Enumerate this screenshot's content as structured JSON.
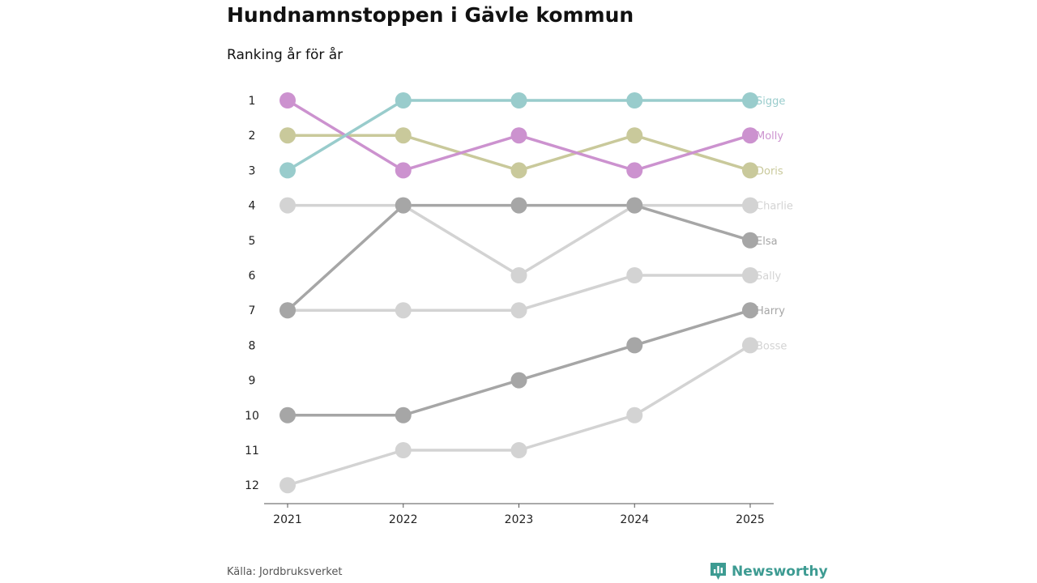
{
  "title": "Hundnamnstoppen i Gävle kommun",
  "subtitle": "Ranking år för år",
  "source": "Källa: Jordbruksverket",
  "brand": "Newsworthy",
  "brand_color": "#3d9b92",
  "chart_data": {
    "type": "line",
    "title": "Hundnamnstoppen i Gävle kommun",
    "subtitle": "Ranking år för år",
    "xlabel": "",
    "ylabel": "",
    "x": [
      "2021",
      "2022",
      "2023",
      "2024",
      "2025"
    ],
    "yticks": [
      1,
      2,
      3,
      4,
      5,
      6,
      7,
      8,
      9,
      10,
      11,
      12
    ],
    "ylim": [
      1,
      12
    ],
    "y_inverted": true,
    "series": [
      {
        "name": "Charlie",
        "color": "#d3d3d3",
        "values": [
          4,
          4,
          6,
          4,
          4
        ]
      },
      {
        "name": "Sally",
        "color": "#d3d3d3",
        "values": [
          7,
          7,
          7,
          6,
          6
        ]
      },
      {
        "name": "Bosse",
        "color": "#d3d3d3",
        "values": [
          12,
          11,
          11,
          10,
          8
        ]
      },
      {
        "name": "Elsa",
        "color": "#a6a6a6",
        "values": [
          7,
          4,
          4,
          4,
          5
        ]
      },
      {
        "name": "Harry",
        "color": "#a6a6a6",
        "values": [
          10,
          10,
          9,
          8,
          7
        ]
      },
      {
        "name": "Doris",
        "color": "#c9c99b",
        "values": [
          2,
          2,
          3,
          2,
          3
        ]
      },
      {
        "name": "Molly",
        "color": "#cc92cf",
        "values": [
          1,
          3,
          2,
          3,
          2
        ]
      },
      {
        "name": "Sigge",
        "color": "#99cccc",
        "values": [
          3,
          1,
          1,
          1,
          1
        ]
      }
    ]
  }
}
